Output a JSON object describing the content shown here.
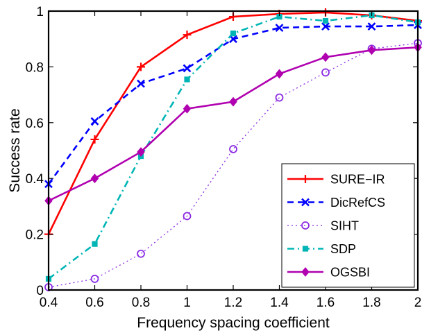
{
  "chart_data": {
    "type": "line",
    "xlabel": "Frequency spacing coefficient",
    "ylabel": "Success rate",
    "xlim": [
      0.4,
      2
    ],
    "ylim": [
      0,
      1
    ],
    "x_ticks": [
      "0.4",
      "0.6",
      "0.8",
      "1",
      "1.2",
      "1.4",
      "1.6",
      "1.8",
      "2"
    ],
    "y_ticks": [
      "0",
      "0.2",
      "0.4",
      "0.6",
      "0.8",
      "1"
    ],
    "x": [
      0.4,
      0.6,
      0.8,
      1.0,
      1.2,
      1.4,
      1.6,
      1.8,
      2.0
    ],
    "grid": false,
    "legend_position": "bottom-right",
    "series": [
      {
        "name": "SURE−IR",
        "color": "#ff0000",
        "dash": "solid",
        "marker": "plus",
        "values": [
          0.2,
          0.54,
          0.8,
          0.915,
          0.98,
          0.99,
          0.995,
          0.985,
          0.965
        ]
      },
      {
        "name": "DicRefCS",
        "color": "#0000ff",
        "dash": "dashed",
        "marker": "x",
        "values": [
          0.38,
          0.605,
          0.74,
          0.795,
          0.9,
          0.94,
          0.945,
          0.945,
          0.95
        ]
      },
      {
        "name": "SIHT",
        "color": "#8a2be2",
        "dash": "dotted",
        "marker": "circle",
        "values": [
          0.01,
          0.04,
          0.13,
          0.265,
          0.505,
          0.69,
          0.78,
          0.865,
          0.885
        ]
      },
      {
        "name": "SDP",
        "color": "#00b5b5",
        "dash": "dashdot",
        "marker": "square",
        "values": [
          0.04,
          0.165,
          0.48,
          0.755,
          0.92,
          0.98,
          0.965,
          0.985,
          0.96
        ]
      },
      {
        "name": "OGSBI",
        "color": "#b000b0",
        "dash": "solid",
        "marker": "diamond",
        "values": [
          0.32,
          0.4,
          0.495,
          0.65,
          0.675,
          0.775,
          0.835,
          0.86,
          0.87
        ]
      }
    ]
  }
}
